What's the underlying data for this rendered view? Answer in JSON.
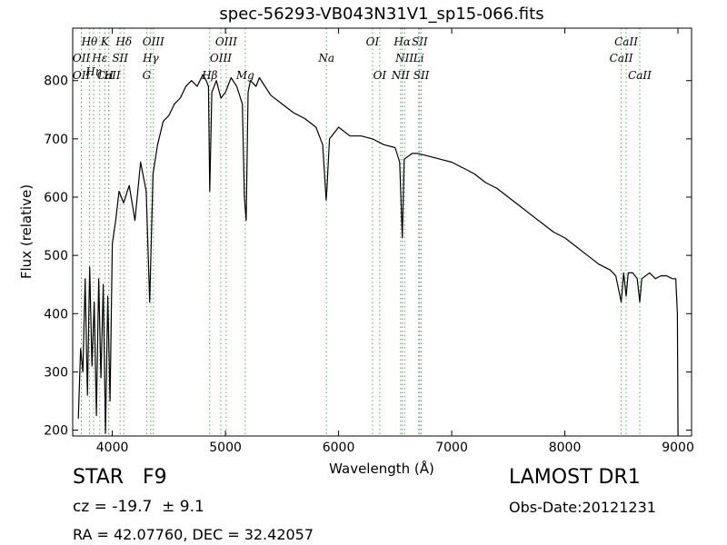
{
  "chart_data": {
    "type": "line",
    "title": "spec-56293-VB043N31V1_sp15-066.fits",
    "xlabel": "Wavelength (Å)",
    "ylabel": "Flux (relative)",
    "xlim": [
      3650,
      9120
    ],
    "ylim": [
      190,
      890
    ],
    "x_ticks": [
      4000,
      5000,
      6000,
      7000,
      8000,
      9000
    ],
    "y_ticks": [
      200,
      300,
      400,
      500,
      600,
      700,
      800
    ],
    "grid": false,
    "line_color": "#000000",
    "marker_line_color": "#4caf50",
    "line_markers": [
      {
        "label": "Hθ",
        "x": 3798,
        "row": 1
      },
      {
        "label": "K",
        "x": 3934,
        "row": 1
      },
      {
        "label": "Hδ",
        "x": 4102,
        "row": 1
      },
      {
        "label": "OIII",
        "x": 4363,
        "row": 1
      },
      {
        "label": "OIII",
        "x": 5007,
        "row": 1
      },
      {
        "label": "OI",
        "x": 6300,
        "row": 1
      },
      {
        "label": "Hα",
        "x": 6563,
        "row": 1
      },
      {
        "label": "SII",
        "x": 6717,
        "row": 1
      },
      {
        "label": "CaII",
        "x": 8542,
        "row": 1
      },
      {
        "label": "OII",
        "x": 3727,
        "row": 2
      },
      {
        "label": "Hε",
        "x": 3889,
        "row": 2
      },
      {
        "label": "SII",
        "x": 4069,
        "row": 2
      },
      {
        "label": "Hγ",
        "x": 4340,
        "row": 2
      },
      {
        "label": "OIII",
        "x": 4959,
        "row": 2
      },
      {
        "label": "Na",
        "x": 5893,
        "row": 2
      },
      {
        "label": "NII",
        "x": 6583,
        "row": 2
      },
      {
        "label": "Li",
        "x": 6708,
        "row": 2
      },
      {
        "label": "CaII",
        "x": 8498,
        "row": 2
      },
      {
        "label": "Hη",
        "x": 3835,
        "row": 3
      },
      {
        "label": "OII",
        "x": 3727,
        "row": 4
      },
      {
        "label": "CaII",
        "x": 3969,
        "row": 4
      },
      {
        "label": "H",
        "x": 3969,
        "row": 4
      },
      {
        "label": "G",
        "x": 4304,
        "row": 4
      },
      {
        "label": "Hβ",
        "x": 4861,
        "row": 4
      },
      {
        "label": "Mg",
        "x": 5175,
        "row": 4
      },
      {
        "label": "OI",
        "x": 6364,
        "row": 4
      },
      {
        "label": "NII",
        "x": 6548,
        "row": 4
      },
      {
        "label": "SII",
        "x": 6731,
        "row": 4
      },
      {
        "label": "CaII",
        "x": 8662,
        "row": 4
      }
    ],
    "series": [
      {
        "x": [
          3700,
          3720,
          3740,
          3760,
          3780,
          3800,
          3820,
          3840,
          3860,
          3880,
          3900,
          3920,
          3940,
          3960,
          3980,
          4000,
          4030,
          4060,
          4100,
          4150,
          4200,
          4250,
          4300,
          4330,
          4360,
          4400,
          4450,
          4500,
          4550,
          4600,
          4650,
          4700,
          4750,
          4800,
          4830,
          4850,
          4861,
          4880,
          4920,
          4960,
          5000,
          5050,
          5100,
          5150,
          5167,
          5183,
          5200,
          5220,
          5270,
          5300,
          5400,
          5500,
          5600,
          5700,
          5800,
          5860,
          5890,
          5896,
          5920,
          6000,
          6100,
          6200,
          6300,
          6400,
          6500,
          6540,
          6563,
          6580,
          6650,
          6700,
          6800,
          6900,
          7000,
          7100,
          7200,
          7300,
          7400,
          7500,
          7600,
          7700,
          7800,
          7900,
          8000,
          8100,
          8200,
          8300,
          8400,
          8450,
          8498,
          8520,
          8542,
          8560,
          8600,
          8640,
          8662,
          8680,
          8750,
          8800,
          8850,
          8900,
          8950,
          8980,
          8995,
          9000
        ],
        "y": [
          220,
          340,
          300,
          460,
          260,
          480,
          310,
          420,
          225,
          460,
          290,
          450,
          195,
          430,
          250,
          520,
          560,
          610,
          590,
          620,
          560,
          660,
          610,
          420,
          640,
          690,
          730,
          740,
          760,
          770,
          790,
          800,
          790,
          810,
          800,
          790,
          610,
          780,
          800,
          770,
          780,
          805,
          790,
          760,
          600,
          560,
          780,
          800,
          790,
          805,
          775,
          760,
          745,
          735,
          720,
          690,
          595,
          610,
          700,
          720,
          705,
          705,
          700,
          690,
          685,
          660,
          530,
          665,
          675,
          675,
          670,
          665,
          660,
          650,
          640,
          625,
          615,
          600,
          585,
          570,
          555,
          540,
          530,
          515,
          500,
          485,
          475,
          465,
          420,
          470,
          430,
          470,
          470,
          460,
          420,
          460,
          470,
          460,
          465,
          465,
          460,
          460,
          400,
          190
        ]
      }
    ]
  },
  "info": {
    "object_class": "STAR   F9",
    "survey": "LAMOST DR1",
    "redshift": "cz = -19.7  ± 9.1",
    "obs_date": "Obs-Date:20121231",
    "coords": "RA = 42.07760, DEC = 32.42057"
  }
}
